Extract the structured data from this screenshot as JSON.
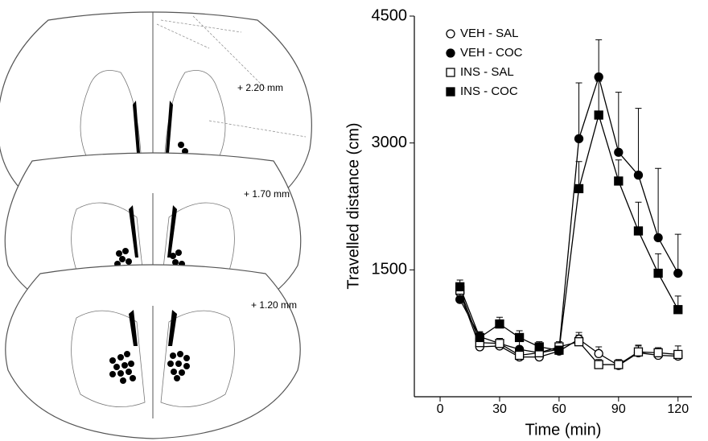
{
  "atlas": {
    "labels": [
      "+ 2.20 mm",
      "+ 1.70 mm",
      "+ 1.20 mm"
    ]
  },
  "chart_data": {
    "type": "line",
    "x_label": "Time  (min)",
    "y_label": "Travelled distance (cm)",
    "x": [
      10,
      20,
      30,
      40,
      50,
      60,
      70,
      80,
      90,
      100,
      110,
      120
    ],
    "series": [
      {
        "name": "VEH - SAL",
        "color": "#000000",
        "marker": "circle",
        "filled": false,
        "values": [
          1230,
          590,
          600,
          470,
          470,
          540,
          680,
          510,
          370,
          520,
          490,
          480
        ],
        "errors": [
          80,
          60,
          60,
          60,
          60,
          60,
          80,
          80,
          60,
          80,
          60,
          60
        ]
      },
      {
        "name": "VEH - COC",
        "color": "#000000",
        "marker": "circle",
        "filled": true,
        "values": [
          1150,
          710,
          630,
          560,
          520,
          560,
          3050,
          3780,
          2890,
          2620,
          1880,
          1460
        ],
        "errors": [
          60,
          60,
          60,
          100,
          100,
          60,
          660,
          440,
          710,
          790,
          820,
          460
        ]
      },
      {
        "name": "INS - SAL",
        "color": "#000000",
        "marker": "square",
        "filled": false,
        "values": [
          1260,
          640,
          630,
          490,
          520,
          590,
          650,
          380,
          380,
          530,
          520,
          500
        ],
        "errors": [
          80,
          60,
          60,
          60,
          80,
          60,
          80,
          60,
          60,
          80,
          60,
          100
        ]
      },
      {
        "name": "INS - COC",
        "color": "#000000",
        "marker": "square",
        "filled": true,
        "values": [
          1300,
          700,
          860,
          700,
          590,
          550,
          2460,
          3330,
          2550,
          1960,
          1460,
          1030
        ],
        "errors": [
          80,
          60,
          80,
          80,
          60,
          60,
          320,
          400,
          250,
          340,
          230,
          160
        ]
      }
    ],
    "xlim": [
      -13,
      127
    ],
    "xticks": [
      0,
      30,
      60,
      90,
      120
    ],
    "ylim": [
      0,
      4500
    ],
    "yticks": [
      1500,
      3000,
      4500
    ],
    "legend": "upper-left",
    "grid": false
  }
}
